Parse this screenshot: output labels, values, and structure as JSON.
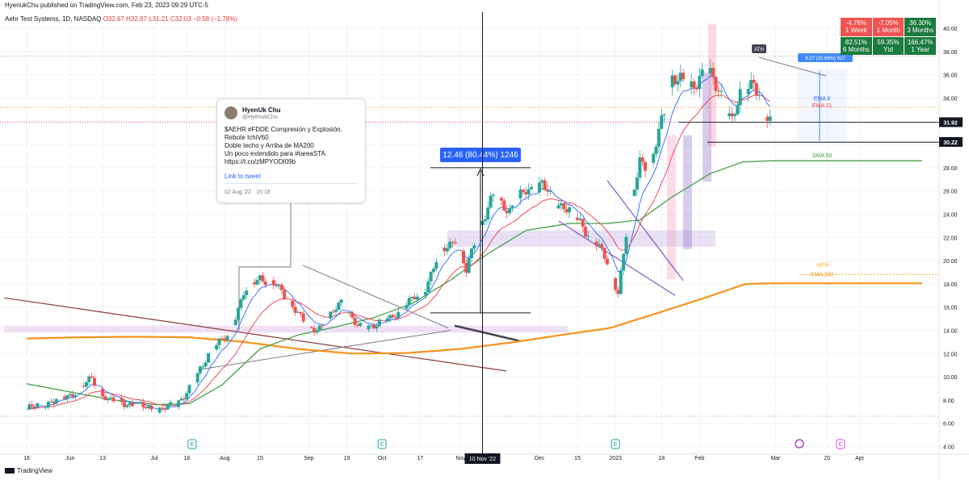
{
  "header": {
    "published": "HyenukChu published on TradingView.com, Feb 23, 2023 09:29 UTC-5",
    "symbol": "Aehr Test Systems, 1D, NASDAQ",
    "ohlc": "O32.67 H32.87 L31.21 C32.03 −0.58 (−1.78%)"
  },
  "performance": [
    {
      "value": "-4.76%",
      "label": "1 Week",
      "color": "#f05350"
    },
    {
      "value": "-7.05%",
      "label": "1 Month",
      "color": "#f05350"
    },
    {
      "value": "36.30%",
      "label": "3 Months",
      "color": "#1b7a3e"
    },
    {
      "value": "82.51%",
      "label": "6 Months",
      "color": "#1b7a3e"
    },
    {
      "value": "59.35%",
      "label": "Ytd",
      "color": "#1b7a3e"
    },
    {
      "value": "166.47%",
      "label": "1 Year",
      "color": "#1b7a3e"
    }
  ],
  "tweet": {
    "name": "HyenUk Chu",
    "handle": "@HyenukChu",
    "text": "$AEHR #FDDE Compresión y Explosión.\nRebote IchiV60\nDoble techo y Arriba de MA200\nUn poco extendido para #tareaSTA https://t.co/zMPYODI09b",
    "link": "Link to tweet",
    "date": "02 Aug '22 · 15:18"
  },
  "brand": "TradingView",
  "chart_data": {
    "type": "candlestick",
    "colors": {
      "up": "#26a69a",
      "down": "#ef5350",
      "ema8": "#2962ff",
      "ema21": "#f23645",
      "sma50": "#43a047",
      "sma200": "#f7931a"
    },
    "y_ticks": [
      "4.00",
      "6.00",
      "8.00",
      "10.00",
      "12.00",
      "14.00",
      "16.00",
      "18.00",
      "20.00",
      "22.00",
      "24.00",
      "26.00",
      "28.00",
      "30.00",
      "32.00",
      "34.00",
      "36.00",
      "38.00",
      "40.00"
    ],
    "ylim": [
      3.3,
      40.6
    ],
    "x_ticks": [
      {
        "label": "16",
        "d": 0
      },
      {
        "label": "Jun",
        "d": 16
      },
      {
        "label": "13",
        "d": 28
      },
      {
        "label": "Jul",
        "d": 47
      },
      {
        "label": "18",
        "d": 59
      },
      {
        "label": "Aug",
        "d": 73
      },
      {
        "label": "15",
        "d": 86
      },
      {
        "label": "Sep",
        "d": 104
      },
      {
        "label": "19",
        "d": 118
      },
      {
        "label": "Oct",
        "d": 131
      },
      {
        "label": "17",
        "d": 145
      },
      {
        "label": "Nov",
        "d": 160
      },
      {
        "label": "Dec",
        "d": 189
      },
      {
        "label": "15",
        "d": 203
      },
      {
        "label": "2023",
        "d": 217
      },
      {
        "label": "18",
        "d": 234
      },
      {
        "label": "Feb",
        "d": 248
      },
      {
        "label": "Mar",
        "d": 276
      },
      {
        "label": "20",
        "d": 295
      },
      {
        "label": "Apr",
        "d": 307
      }
    ],
    "crosshair_label": "10 Nov '22",
    "crosshair_d": 168,
    "price_labels": [
      {
        "value": "31.92",
        "price": 31.92
      },
      {
        "value": "30.22",
        "price": 30.22
      }
    ],
    "ema_labels": [
      {
        "text": "EMA 8",
        "price": 34.0,
        "color": "#2962ff"
      },
      {
        "text": "EMA 21",
        "price": 33.4,
        "color": "#f23645"
      }
    ],
    "sma_labels": [
      {
        "text": "SMA 50",
        "price": 29.1,
        "color": "#43a047"
      },
      {
        "text": "SMA 200",
        "price": 18.85,
        "color": "#f7931a"
      }
    ],
    "fib_label": {
      "text": "-50%",
      "price": 19.7
    },
    "measure_label": "12.46 (80.44%) 1246",
    "small_measure_label": "6.27 (20.66%) 627",
    "ath_label": "ATH",
    "earnings_marker": "E",
    "event_days": [
      61,
      131,
      217,
      300
    ],
    "candles_key": [
      [
        0,
        7.2
      ],
      [
        8,
        7.8
      ],
      [
        16,
        8.4
      ],
      [
        24,
        9.8
      ],
      [
        30,
        8.0
      ],
      [
        40,
        7.6
      ],
      [
        48,
        7.1
      ],
      [
        55,
        7.6
      ],
      [
        62,
        9.6
      ],
      [
        68,
        12.5
      ],
      [
        74,
        13.4
      ],
      [
        80,
        17.2
      ],
      [
        86,
        18.6
      ],
      [
        92,
        17.8
      ],
      [
        98,
        16.2
      ],
      [
        104,
        14.0
      ],
      [
        110,
        14.5
      ],
      [
        116,
        16.6
      ],
      [
        122,
        14.2
      ],
      [
        128,
        14.5
      ],
      [
        134,
        15.0
      ],
      [
        140,
        16.3
      ],
      [
        146,
        17.2
      ],
      [
        152,
        20.5
      ],
      [
        158,
        22.0
      ],
      [
        162,
        19.0
      ],
      [
        166,
        22.5
      ],
      [
        172,
        25.5
      ],
      [
        178,
        24.4
      ],
      [
        184,
        26.0
      ],
      [
        190,
        26.6
      ],
      [
        194,
        25.0
      ],
      [
        198,
        24.8
      ],
      [
        204,
        23.2
      ],
      [
        210,
        21.5
      ],
      [
        214,
        19.8
      ],
      [
        218,
        17.3
      ],
      [
        222,
        23.8
      ],
      [
        226,
        28.8
      ],
      [
        230,
        27.9
      ],
      [
        234,
        32.0
      ],
      [
        238,
        35.9
      ],
      [
        244,
        34.8
      ],
      [
        250,
        36.4
      ],
      [
        256,
        34.4
      ],
      [
        260,
        31.9
      ],
      [
        264,
        34.8
      ],
      [
        268,
        35.6
      ],
      [
        272,
        32.3
      ],
      [
        274,
        32.0
      ]
    ],
    "sma200_key": [
      [
        0,
        13.3
      ],
      [
        20,
        13.4
      ],
      [
        40,
        13.45
      ],
      [
        60,
        13.4
      ],
      [
        80,
        13.0
      ],
      [
        100,
        12.4
      ],
      [
        120,
        12.0
      ],
      [
        140,
        12.05
      ],
      [
        160,
        12.4
      ],
      [
        180,
        13.0
      ],
      [
        200,
        13.7
      ],
      [
        215,
        14.2
      ],
      [
        230,
        15.3
      ],
      [
        250,
        16.8
      ],
      [
        265,
        18.0
      ],
      [
        275,
        18.05
      ],
      [
        330,
        18.05
      ]
    ],
    "sma50_key": [
      [
        0,
        9.4
      ],
      [
        16,
        8.7
      ],
      [
        32,
        8.0
      ],
      [
        48,
        7.6
      ],
      [
        60,
        7.7
      ],
      [
        72,
        9.3
      ],
      [
        86,
        12.4
      ],
      [
        100,
        13.6
      ],
      [
        114,
        14.3
      ],
      [
        128,
        15.1
      ],
      [
        142,
        16.3
      ],
      [
        156,
        18.3
      ],
      [
        170,
        20.6
      ],
      [
        184,
        22.6
      ],
      [
        200,
        23.2
      ],
      [
        214,
        23.2
      ],
      [
        226,
        23.5
      ],
      [
        238,
        25.5
      ],
      [
        252,
        27.5
      ],
      [
        264,
        28.5
      ],
      [
        275,
        28.6
      ],
      [
        330,
        28.6
      ]
    ]
  }
}
